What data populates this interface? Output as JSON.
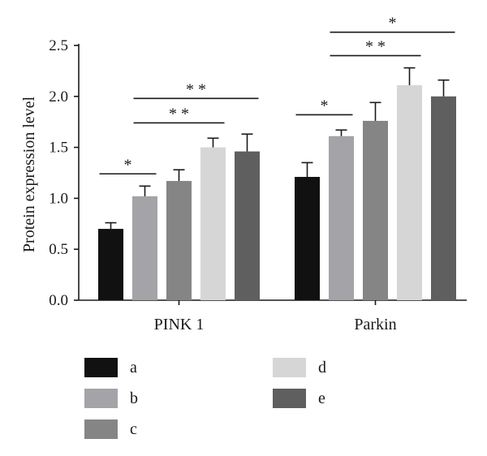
{
  "chart_data": {
    "type": "bar",
    "title": "",
    "xlabel": "",
    "ylabel": "Protein expression level",
    "ylim": [
      0,
      2.5
    ],
    "yticks": [
      "0.0",
      "0.5",
      "1.0",
      "1.5",
      "2.0",
      "2.5"
    ],
    "grid": false,
    "categories": [
      "PINK 1",
      "Parkin"
    ],
    "series": [
      {
        "name": "a",
        "color": "#111111",
        "values": [
          0.7,
          1.21
        ],
        "errors": [
          0.06,
          0.14
        ]
      },
      {
        "name": "b",
        "color": "#a3a3a8",
        "values": [
          1.02,
          1.61
        ],
        "errors": [
          0.1,
          0.06
        ]
      },
      {
        "name": "c",
        "color": "#858585",
        "values": [
          1.17,
          1.76
        ],
        "errors": [
          0.11,
          0.18
        ]
      },
      {
        "name": "d",
        "color": "#d6d6d6",
        "values": [
          1.5,
          2.11
        ],
        "errors": [
          0.09,
          0.17
        ]
      },
      {
        "name": "e",
        "color": "#5f5f5f",
        "values": [
          1.46,
          2.0
        ],
        "errors": [
          0.17,
          0.16
        ]
      }
    ],
    "legend_position": "bottom",
    "significance": [
      {
        "category": 0,
        "from_series": 0,
        "to_series": 1,
        "label": "*",
        "y": 1.24
      },
      {
        "category": 0,
        "from_series": 1,
        "to_series": 3,
        "label": "**",
        "y": 1.74
      },
      {
        "category": 0,
        "from_series": 1,
        "to_series": 4,
        "label": "**",
        "y": 1.98
      },
      {
        "category": 1,
        "from_series": 0,
        "to_series": 1,
        "label": "*",
        "y": 1.82
      },
      {
        "category": 1,
        "from_series": 1,
        "to_series": 3,
        "label": "**",
        "y": 2.4
      },
      {
        "category": 1,
        "from_series": 1,
        "to_series": 4,
        "label": "*",
        "y": 2.63
      }
    ]
  }
}
